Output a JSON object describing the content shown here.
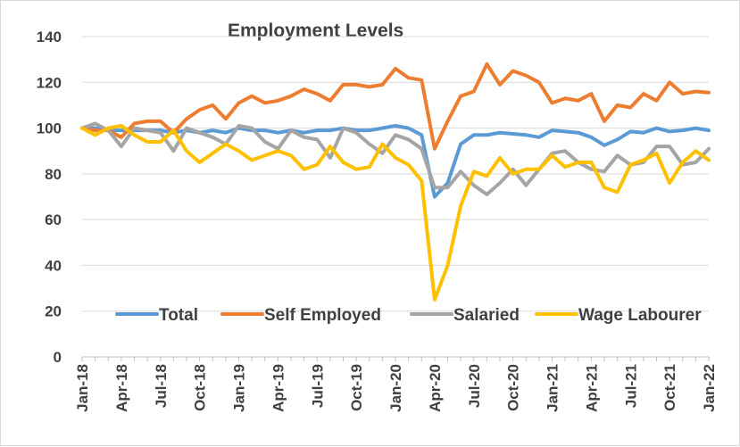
{
  "chart_data": {
    "type": "line",
    "title": "Employment Levels",
    "xlabel": "",
    "ylabel": "",
    "ylim": [
      0,
      140
    ],
    "yticks": [
      0,
      20,
      40,
      60,
      80,
      100,
      120,
      140
    ],
    "grid": true,
    "legend_position": "bottom-inside",
    "x": [
      "Jan-18",
      "Feb-18",
      "Mar-18",
      "Apr-18",
      "May-18",
      "Jun-18",
      "Jul-18",
      "Aug-18",
      "Sep-18",
      "Oct-18",
      "Nov-18",
      "Dec-18",
      "Jan-19",
      "Feb-19",
      "Mar-19",
      "Apr-19",
      "May-19",
      "Jun-19",
      "Jul-19",
      "Aug-19",
      "Sep-19",
      "Oct-19",
      "Nov-19",
      "Dec-19",
      "Jan-20",
      "Feb-20",
      "Mar-20",
      "Apr-20",
      "May-20",
      "Jun-20",
      "Jul-20",
      "Aug-20",
      "Sep-20",
      "Oct-20",
      "Nov-20",
      "Dec-20",
      "Jan-21",
      "Feb-21",
      "Mar-21",
      "Apr-21",
      "May-21",
      "Jun-21",
      "Jul-21",
      "Aug-21",
      "Sep-21",
      "Oct-21",
      "Nov-21",
      "Dec-21",
      "Jan-22"
    ],
    "x_tick_labels": [
      "Jan-18",
      "Apr-18",
      "Jul-18",
      "Oct-18",
      "Jan-19",
      "Apr-19",
      "Jul-19",
      "Oct-19",
      "Jan-20",
      "Apr-20",
      "Jul-20",
      "Oct-20",
      "Jan-21",
      "Apr-21",
      "Jul-21",
      "Oct-21",
      "Jan-22"
    ],
    "series": [
      {
        "name": "Total",
        "color": "#5b9bd5",
        "values": [
          100,
          100,
          99,
          99,
          99,
          99,
          99,
          98,
          99,
          98,
          99,
          98,
          100,
          99,
          99,
          98,
          99,
          98,
          99,
          99,
          100,
          99,
          99,
          100,
          101,
          100,
          97,
          70,
          76,
          93,
          97,
          97,
          98,
          97.5,
          97,
          96,
          99,
          98.5,
          98,
          96,
          92.5,
          95,
          98.5,
          98,
          100,
          98.5,
          99,
          100,
          99
        ]
      },
      {
        "name": "Self Employed",
        "color": "#ed7d31",
        "values": [
          100,
          99,
          99,
          96,
          102,
          103,
          103,
          98,
          104,
          108,
          110,
          104,
          111,
          114,
          111,
          112,
          114,
          117,
          115,
          112,
          119,
          119,
          118,
          119,
          126,
          122,
          121,
          91,
          103,
          114,
          116,
          128,
          119,
          125,
          123,
          120,
          111,
          113,
          112,
          115,
          103,
          110,
          109,
          115,
          112,
          120,
          115,
          116,
          115.5
        ]
      },
      {
        "name": "Salaried",
        "color": "#a5a5a5",
        "values": [
          100,
          102,
          99,
          92,
          100,
          99,
          98,
          90,
          100,
          98,
          96,
          93,
          101,
          100,
          94,
          91,
          99,
          96,
          95,
          87,
          100,
          98,
          93,
          89,
          97,
          95,
          91,
          74,
          74,
          81,
          75,
          71,
          76,
          82,
          75,
          82,
          89,
          90,
          85,
          82,
          81,
          88,
          84,
          85,
          92,
          92,
          84,
          85,
          91
        ]
      },
      {
        "name": "Wage Labourer",
        "color": "#ffc000",
        "values": [
          100,
          97,
          100,
          101,
          97,
          94,
          94,
          99,
          90,
          85,
          89,
          93,
          90,
          86,
          88,
          90,
          88,
          82,
          84,
          92,
          85,
          82,
          83,
          93,
          87,
          84,
          77,
          25,
          40,
          66,
          81,
          79,
          87,
          80,
          82,
          82,
          88,
          83,
          85,
          85,
          74,
          72,
          84,
          86,
          89,
          76,
          85,
          90,
          86
        ]
      }
    ]
  }
}
